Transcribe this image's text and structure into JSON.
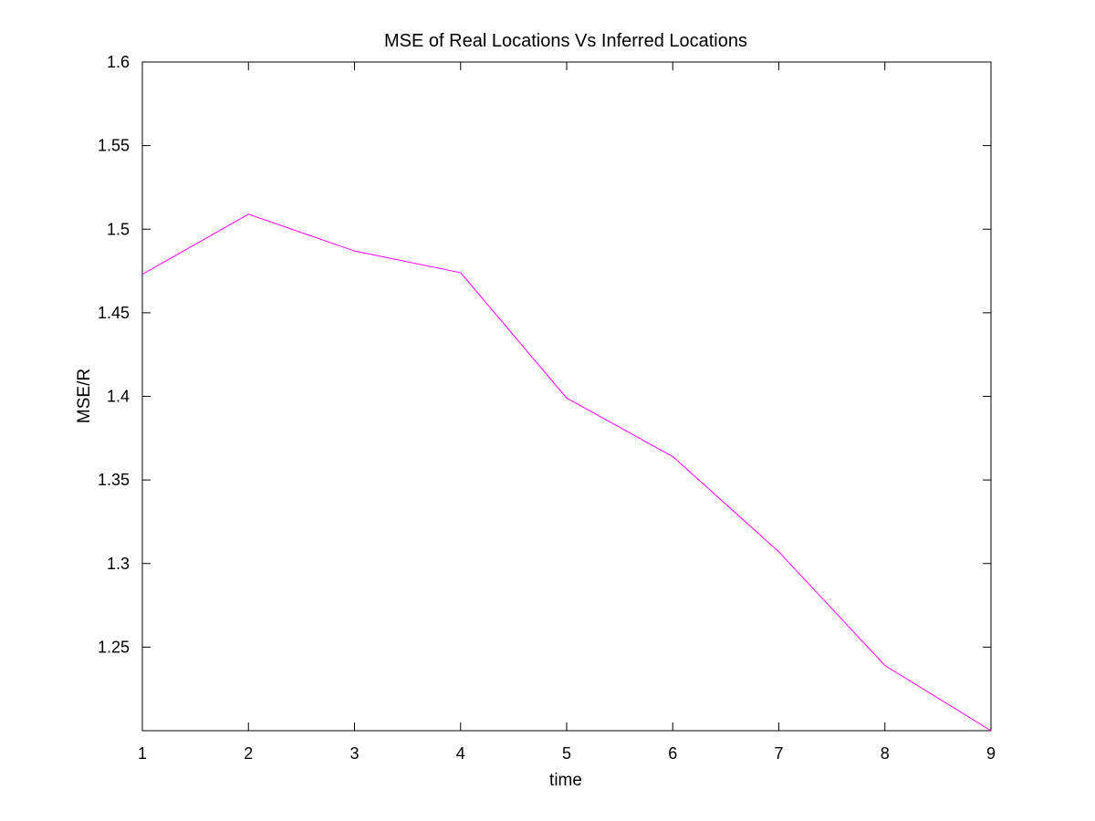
{
  "chart_data": {
    "type": "line",
    "title": "MSE of Real Locations Vs Inferred Locations",
    "xlabel": "time",
    "ylabel": "MSE/R",
    "xlim": [
      1,
      9
    ],
    "ylim": [
      1.2,
      1.6
    ],
    "xticks": [
      1,
      2,
      3,
      4,
      5,
      6,
      7,
      8,
      9
    ],
    "yticks": [
      1.25,
      1.3,
      1.35,
      1.4,
      1.45,
      1.5,
      1.55,
      1.6
    ],
    "ytick_labels": [
      "1.25",
      "1.3",
      "1.35",
      "1.4",
      "1.45",
      "1.5",
      "1.55",
      "1.6"
    ],
    "grid": false,
    "series": [
      {
        "color": "#ff00ff",
        "x": [
          1,
          2,
          3,
          4,
          5,
          6,
          7,
          8,
          9
        ],
        "y": [
          1.473,
          1.509,
          1.487,
          1.474,
          1.399,
          1.364,
          1.307,
          1.239,
          1.2
        ]
      }
    ]
  }
}
